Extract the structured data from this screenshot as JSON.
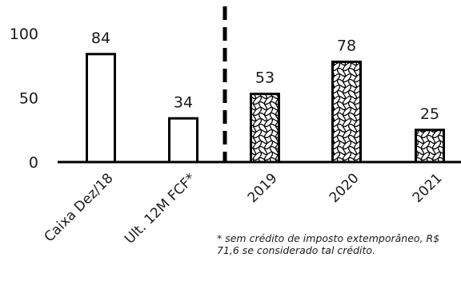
{
  "chart_data": {
    "type": "bar",
    "categories": [
      "Caixa Dez/18",
      "Ult. 12M FCF*",
      "2019",
      "2020",
      "2021"
    ],
    "values": [
      84,
      34,
      53,
      78,
      25
    ],
    "data_labels": [
      "84",
      "34",
      "53",
      "78",
      "25"
    ],
    "bar_fill": [
      "plain",
      "plain",
      "patterned",
      "patterned",
      "patterned"
    ],
    "y_ticks": [
      "0",
      "50",
      "100"
    ],
    "ylim": [
      0,
      100
    ],
    "divider_after_category": 1,
    "grid": false,
    "colors": {
      "ink": "#000000",
      "background": "#ffffff"
    }
  },
  "footnote": "* sem crédito de imposto extemporâneo, R$ 71,6 se considerado tal crédito."
}
